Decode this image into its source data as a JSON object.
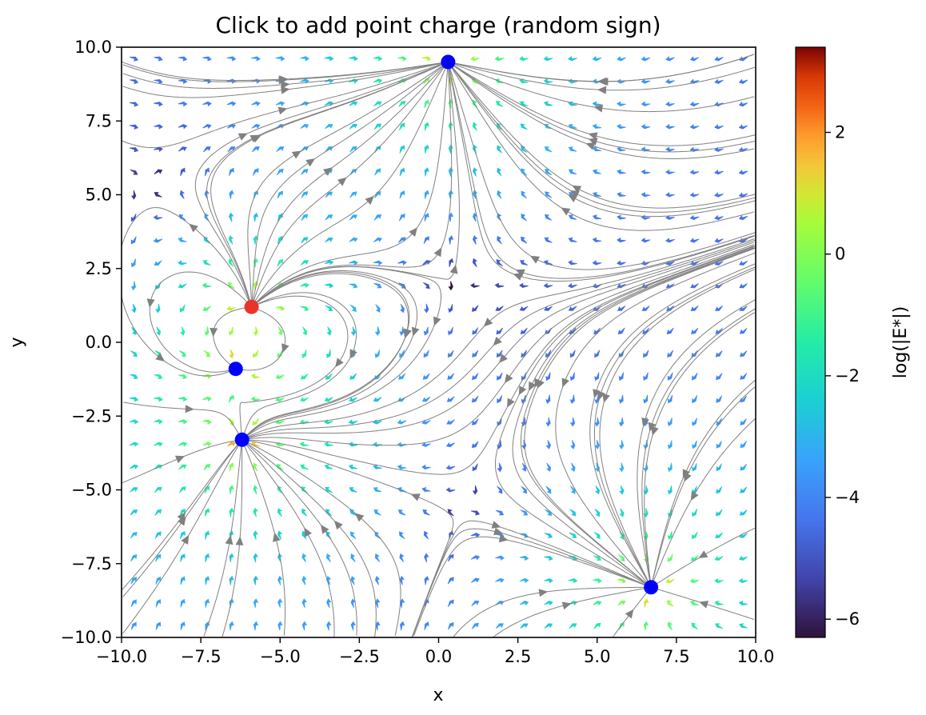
{
  "chart_data": {
    "type": "scatter",
    "title": "Click to add point charge (random sign)",
    "xlabel": "x",
    "ylabel": "y",
    "xlim": [
      -10,
      10
    ],
    "ylim": [
      -10,
      10
    ],
    "xticks": [
      "−10.0",
      "−7.5",
      "−5.0",
      "−2.5",
      "0.0",
      "2.5",
      "5.0",
      "7.5",
      "10.0"
    ],
    "yticks": [
      "−10.0",
      "−7.5",
      "−5.0",
      "−2.5",
      "0.0",
      "2.5",
      "5.0",
      "7.5",
      "10.0"
    ],
    "grid": false,
    "charges": [
      {
        "x": 0.3,
        "y": 9.5,
        "q": -1,
        "color": "#0000ff"
      },
      {
        "x": -5.9,
        "y": 1.2,
        "q": 1,
        "color": "#e8342a"
      },
      {
        "x": -6.4,
        "y": -0.9,
        "q": -1,
        "color": "#0000ff"
      },
      {
        "x": -6.2,
        "y": -3.3,
        "q": -1,
        "color": "#0000ff"
      },
      {
        "x": 6.7,
        "y": -8.3,
        "q": -1,
        "color": "#0000ff"
      }
    ],
    "colorbar": {
      "label": "log(|E*|)",
      "range": [
        -6.3,
        3.4
      ],
      "ticks": [
        "−6",
        "−4",
        "−2",
        "0",
        "2"
      ],
      "tick_values": [
        -6,
        -4,
        -2,
        0,
        2
      ],
      "colormap": "turbo"
    },
    "streamline_color": "#808080"
  }
}
